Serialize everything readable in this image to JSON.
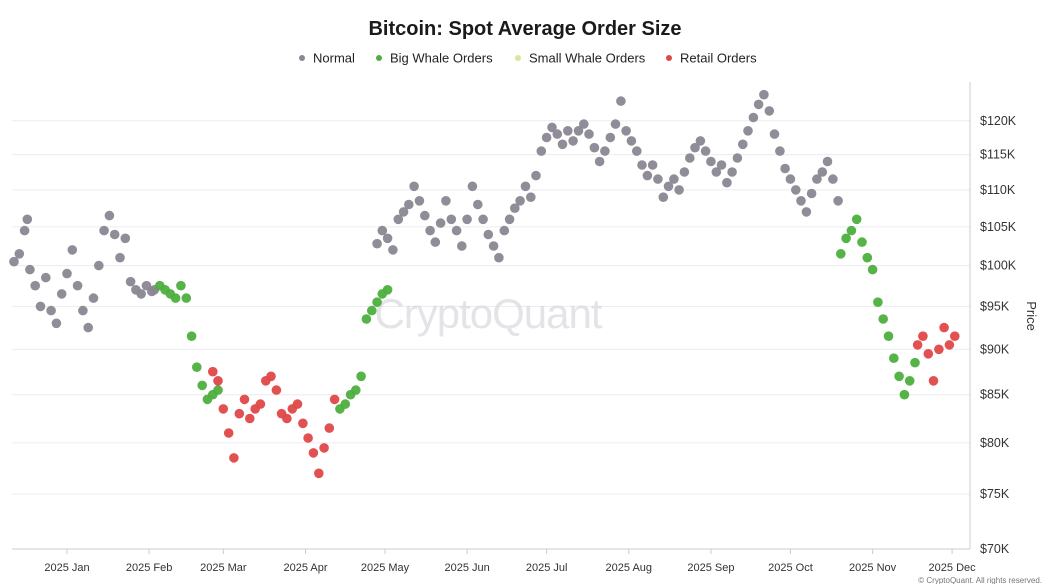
{
  "chart_data": {
    "type": "scatter",
    "title": "Bitcoin: Spot Average Order Size",
    "ylabel": "Price",
    "xlabel": "",
    "y_scale": "log",
    "ylim": [
      70000,
      126000
    ],
    "y_ticks": [
      {
        "value": 70000,
        "label": "$70K"
      },
      {
        "value": 75000,
        "label": "$75K"
      },
      {
        "value": 80000,
        "label": "$80K"
      },
      {
        "value": 85000,
        "label": "$85K"
      },
      {
        "value": 90000,
        "label": "$90K"
      },
      {
        "value": 95000,
        "label": "$95K"
      },
      {
        "value": 100000,
        "label": "$100K"
      },
      {
        "value": 105000,
        "label": "$105K"
      },
      {
        "value": 110000,
        "label": "$110K"
      },
      {
        "value": 115000,
        "label": "$115K"
      },
      {
        "value": 120000,
        "label": "$120K"
      }
    ],
    "xlim_days": [
      0,
      350
    ],
    "x_ticks": [
      {
        "day": 15,
        "label": "2025 Jan"
      },
      {
        "day": 46,
        "label": "2025 Feb"
      },
      {
        "day": 74,
        "label": "2025 Mar"
      },
      {
        "day": 105,
        "label": "2025 Apr"
      },
      {
        "day": 135,
        "label": "2025 May"
      },
      {
        "day": 166,
        "label": "2025 Jun"
      },
      {
        "day": 196,
        "label": "2025 Jul"
      },
      {
        "day": 227,
        "label": "2025 Aug"
      },
      {
        "day": 258,
        "label": "2025 Sep"
      },
      {
        "day": 288,
        "label": "2025 Oct"
      },
      {
        "day": 319,
        "label": "2025 Nov"
      },
      {
        "day": 349,
        "label": "2025 Dec"
      }
    ],
    "legend": [
      {
        "name": "Normal",
        "color": "#8a8793"
      },
      {
        "name": "Big Whale Orders",
        "color": "#4caf3e"
      },
      {
        "name": "Small Whale Orders",
        "color": "#e0e3a0"
      },
      {
        "name": "Retail Orders",
        "color": "#e04848"
      }
    ],
    "series": [
      {
        "name": "Normal",
        "color": "#8a8793",
        "points": [
          [
            -5,
            100500
          ],
          [
            -3,
            101500
          ],
          [
            -1,
            104500
          ],
          [
            0,
            106000
          ],
          [
            1,
            99500
          ],
          [
            3,
            97500
          ],
          [
            5,
            95000
          ],
          [
            7,
            98500
          ],
          [
            9,
            94500
          ],
          [
            11,
            93000
          ],
          [
            13,
            96500
          ],
          [
            15,
            99000
          ],
          [
            17,
            102000
          ],
          [
            19,
            97500
          ],
          [
            21,
            94500
          ],
          [
            23,
            92500
          ],
          [
            25,
            96000
          ],
          [
            27,
            100000
          ],
          [
            29,
            104500
          ],
          [
            31,
            106500
          ],
          [
            33,
            104000
          ],
          [
            35,
            101000
          ],
          [
            37,
            103500
          ],
          [
            39,
            98000
          ],
          [
            41,
            97000
          ],
          [
            43,
            96500
          ],
          [
            45,
            97500
          ],
          [
            47,
            96800
          ],
          [
            48,
            97000
          ],
          [
            132,
            102800
          ],
          [
            134,
            104500
          ],
          [
            136,
            103500
          ],
          [
            138,
            102000
          ],
          [
            140,
            106000
          ],
          [
            142,
            107000
          ],
          [
            144,
            108000
          ],
          [
            146,
            110500
          ],
          [
            148,
            108500
          ],
          [
            150,
            106500
          ],
          [
            152,
            104500
          ],
          [
            154,
            103000
          ],
          [
            156,
            105500
          ],
          [
            158,
            108500
          ],
          [
            160,
            106000
          ],
          [
            162,
            104500
          ],
          [
            164,
            102500
          ],
          [
            166,
            106000
          ],
          [
            168,
            110500
          ],
          [
            170,
            108000
          ],
          [
            172,
            106000
          ],
          [
            174,
            104000
          ],
          [
            176,
            102500
          ],
          [
            178,
            101000
          ],
          [
            180,
            104500
          ],
          [
            182,
            106000
          ],
          [
            184,
            107500
          ],
          [
            186,
            108500
          ],
          [
            188,
            110500
          ],
          [
            190,
            109000
          ],
          [
            192,
            112000
          ],
          [
            194,
            115500
          ],
          [
            196,
            117500
          ],
          [
            198,
            119000
          ],
          [
            200,
            118000
          ],
          [
            202,
            116500
          ],
          [
            204,
            118500
          ],
          [
            206,
            117000
          ],
          [
            208,
            118500
          ],
          [
            210,
            119500
          ],
          [
            212,
            118000
          ],
          [
            214,
            116000
          ],
          [
            216,
            114000
          ],
          [
            218,
            115500
          ],
          [
            220,
            117500
          ],
          [
            222,
            119500
          ],
          [
            224,
            123000
          ],
          [
            226,
            118500
          ],
          [
            228,
            117000
          ],
          [
            230,
            115500
          ],
          [
            232,
            113500
          ],
          [
            234,
            112000
          ],
          [
            236,
            113500
          ],
          [
            238,
            111500
          ],
          [
            240,
            109000
          ],
          [
            242,
            110500
          ],
          [
            244,
            111500
          ],
          [
            246,
            110000
          ],
          [
            248,
            112500
          ],
          [
            250,
            114500
          ],
          [
            252,
            116000
          ],
          [
            254,
            117000
          ],
          [
            256,
            115500
          ],
          [
            258,
            114000
          ],
          [
            260,
            112500
          ],
          [
            262,
            113500
          ],
          [
            264,
            111000
          ],
          [
            266,
            112500
          ],
          [
            268,
            114500
          ],
          [
            270,
            116500
          ],
          [
            272,
            118500
          ],
          [
            274,
            120500
          ],
          [
            276,
            122500
          ],
          [
            278,
            124000
          ],
          [
            280,
            121500
          ],
          [
            282,
            118000
          ],
          [
            284,
            115500
          ],
          [
            286,
            113000
          ],
          [
            288,
            111500
          ],
          [
            290,
            110000
          ],
          [
            292,
            108500
          ],
          [
            294,
            107000
          ],
          [
            296,
            109500
          ],
          [
            298,
            111500
          ],
          [
            300,
            112500
          ],
          [
            302,
            114000
          ],
          [
            304,
            111500
          ],
          [
            306,
            108500
          ]
        ]
      },
      {
        "name": "Big Whale Orders",
        "color": "#4caf3e",
        "points": [
          [
            50,
            97500
          ],
          [
            52,
            97000
          ],
          [
            54,
            96500
          ],
          [
            56,
            96000
          ],
          [
            58,
            97500
          ],
          [
            60,
            96000
          ],
          [
            62,
            91500
          ],
          [
            64,
            88000
          ],
          [
            66,
            86000
          ],
          [
            68,
            84500
          ],
          [
            70,
            85000
          ],
          [
            72,
            85500
          ],
          [
            118,
            83500
          ],
          [
            120,
            84000
          ],
          [
            122,
            85000
          ],
          [
            124,
            85500
          ],
          [
            126,
            87000
          ],
          [
            128,
            93500
          ],
          [
            130,
            94500
          ],
          [
            132,
            95500
          ],
          [
            134,
            96500
          ],
          [
            136,
            97000
          ],
          [
            307,
            101500
          ],
          [
            309,
            103500
          ],
          [
            311,
            104500
          ],
          [
            313,
            106000
          ],
          [
            315,
            103000
          ],
          [
            317,
            101000
          ],
          [
            319,
            99500
          ],
          [
            321,
            95500
          ],
          [
            323,
            93500
          ],
          [
            325,
            91500
          ],
          [
            327,
            89000
          ],
          [
            329,
            87000
          ],
          [
            331,
            85000
          ],
          [
            333,
            86500
          ],
          [
            335,
            88500
          ]
        ]
      },
      {
        "name": "Small Whale Orders",
        "color": "#e0e3a0",
        "points": []
      },
      {
        "name": "Retail Orders",
        "color": "#e04848",
        "points": [
          [
            70,
            87500
          ],
          [
            72,
            86500
          ],
          [
            74,
            83500
          ],
          [
            76,
            81000
          ],
          [
            78,
            78500
          ],
          [
            80,
            83000
          ],
          [
            82,
            84500
          ],
          [
            84,
            82500
          ],
          [
            86,
            83500
          ],
          [
            88,
            84000
          ],
          [
            90,
            86500
          ],
          [
            92,
            87000
          ],
          [
            94,
            85500
          ],
          [
            96,
            83000
          ],
          [
            98,
            82500
          ],
          [
            100,
            83500
          ],
          [
            102,
            84000
          ],
          [
            104,
            82000
          ],
          [
            106,
            80500
          ],
          [
            108,
            79000
          ],
          [
            110,
            77000
          ],
          [
            112,
            79500
          ],
          [
            114,
            81500
          ],
          [
            116,
            84500
          ],
          [
            336,
            90500
          ],
          [
            338,
            91500
          ],
          [
            340,
            89500
          ],
          [
            342,
            86500
          ],
          [
            344,
            90000
          ],
          [
            346,
            92500
          ],
          [
            348,
            90500
          ],
          [
            350,
            91500
          ]
        ]
      }
    ]
  },
  "watermark": "CryptoQuant",
  "credit": "© CryptoQuant. All rights reserved."
}
